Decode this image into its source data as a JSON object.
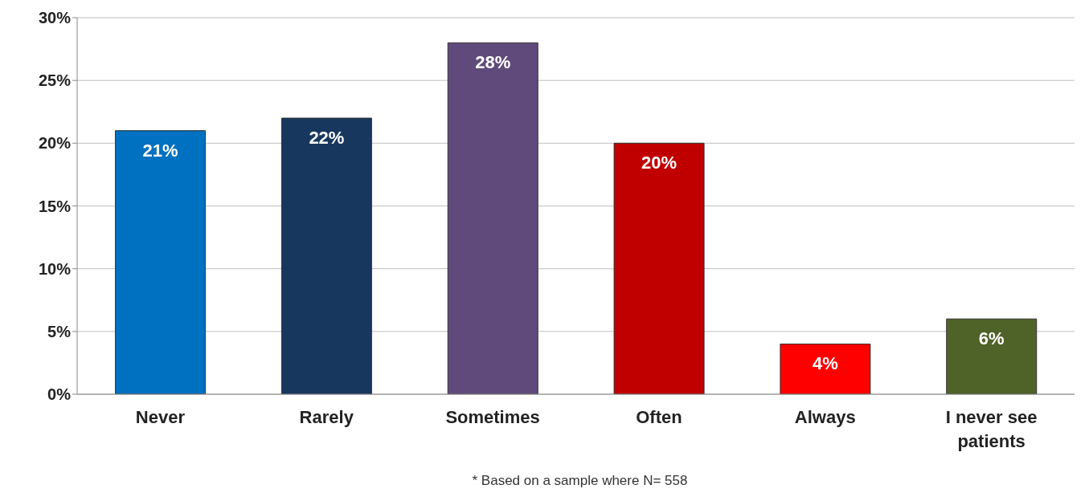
{
  "chart_data": {
    "type": "bar",
    "categories": [
      "Never",
      "Rarely",
      "Sometimes",
      "Often",
      "Always",
      "I never see patients"
    ],
    "values": [
      21,
      22,
      28,
      20,
      4,
      6
    ],
    "colors": [
      "#0070c0",
      "#17375e",
      "#604a7b",
      "#c00000",
      "#ff0000",
      "#4f6228"
    ],
    "value_labels": [
      "21%",
      "22%",
      "28%",
      "20%",
      "4%",
      "6%"
    ],
    "ylim": [
      0,
      30
    ],
    "yticks": [
      {
        "value": 0,
        "label": "0%"
      },
      {
        "value": 5,
        "label": "5%"
      },
      {
        "value": 10,
        "label": "10%"
      },
      {
        "value": 15,
        "label": "15%"
      },
      {
        "value": 20,
        "label": "20%"
      },
      {
        "value": 25,
        "label": "25%"
      },
      {
        "value": 30,
        "label": "30%"
      }
    ],
    "grid": "y",
    "annotations": [
      "* Based on a sample where N= 558"
    ]
  }
}
